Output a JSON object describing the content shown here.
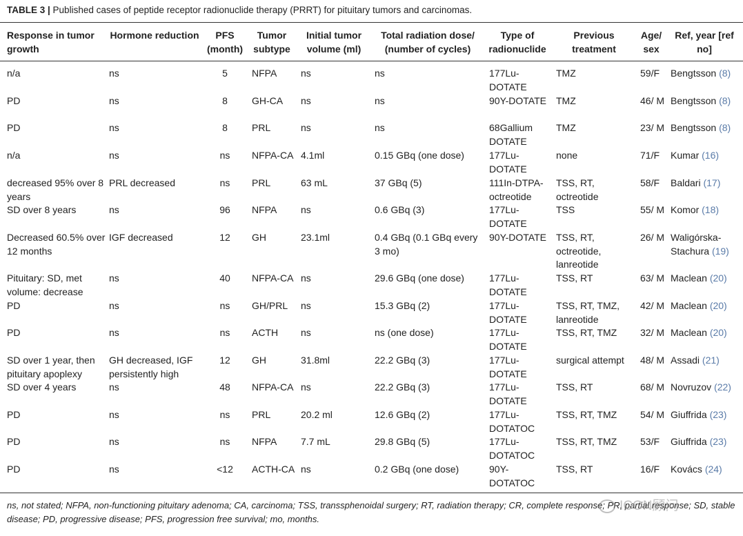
{
  "caption": {
    "label": "TABLE 3 |",
    "text": "Published cases of peptide receptor radionuclide therapy (PRRT) for pituitary tumors and carcinomas."
  },
  "headers": [
    "Response in tumor growth",
    "Hormone reduction",
    "PFS (month)",
    "Tumor subtype",
    "Initial tumor volume (ml)",
    "Total radiation dose/ (number of cycles)",
    "Type of radionuclide",
    "Previous treatment",
    "Age/ sex",
    "Ref, year [ref no]"
  ],
  "rows": [
    {
      "response": "n/a",
      "hormone": "ns",
      "pfs": "5",
      "subtype": "NFPA",
      "volume": "ns",
      "dose": "ns",
      "nuclide": "177Lu-DOTATE",
      "previous": "TMZ",
      "age": "59/F",
      "ref": "Bengtsson",
      "refno": "(8)"
    },
    {
      "response": "PD",
      "hormone": "ns",
      "pfs": "8",
      "subtype": "GH-CA",
      "volume": "ns",
      "dose": "ns",
      "nuclide": "90Y-DOTATE",
      "previous": "TMZ",
      "age": "46/ M",
      "ref": "Bengtsson",
      "refno": "(8)"
    },
    {
      "response": "PD",
      "hormone": "ns",
      "pfs": "8",
      "subtype": "PRL",
      "volume": "ns",
      "dose": "ns",
      "nuclide": "68Gallium DOTATE",
      "previous": "TMZ",
      "age": "23/ M",
      "ref": "Bengtsson",
      "refno": "(8)"
    },
    {
      "response": "n/a",
      "hormone": "ns",
      "pfs": "ns",
      "subtype": "NFPA-CA",
      "volume": "4.1ml",
      "dose": "0.15 GBq (one dose)",
      "nuclide": "177Lu-DOTATE",
      "previous": "none",
      "age": "71/F",
      "ref": "Kumar",
      "refno": "(16)"
    },
    {
      "response": "decreased 95% over 8 years",
      "hormone": "PRL decreased",
      "pfs": "ns",
      "subtype": "PRL",
      "volume": "63 mL",
      "dose": "37 GBq (5)",
      "nuclide": "111In-DTPA-octreotide",
      "previous": "TSS, RT, octreotide",
      "age": "58/F",
      "ref": "Baldari",
      "refno": "(17)"
    },
    {
      "response": "SD over 8 years",
      "hormone": "ns",
      "pfs": "96",
      "subtype": "NFPA",
      "volume": "ns",
      "dose": "0.6 GBq (3)",
      "nuclide": "177Lu-DOTATE",
      "previous": "TSS",
      "age": "55/ M",
      "ref": "Komor",
      "refno": "(18)"
    },
    {
      "response": "Decreased 60.5% over 12 months",
      "hormone": "IGF decreased",
      "pfs": "12",
      "subtype": "GH",
      "volume": "23.1ml",
      "dose": "0.4 GBq (0.1 GBq every 3 mo)",
      "nuclide": "90Y-DOTATE",
      "previous": "TSS, RT, octreotide, lanreotide",
      "age": "26/ M",
      "ref": "Waligórska-Stachura",
      "refno": "(19)"
    },
    {
      "response": "Pituitary: SD, met volume: decrease",
      "hormone": "ns",
      "pfs": "40",
      "subtype": "NFPA-CA",
      "volume": "ns",
      "dose": "29.6 GBq (one dose)",
      "nuclide": "177Lu-DOTATE",
      "previous": "TSS, RT",
      "age": "63/ M",
      "ref": "Maclean",
      "refno": "(20)"
    },
    {
      "response": "PD",
      "hormone": "ns",
      "pfs": "ns",
      "subtype": "GH/PRL",
      "volume": "ns",
      "dose": "15.3 GBq (2)",
      "nuclide": "177Lu-DOTATE",
      "previous": "TSS, RT, TMZ, lanreotide",
      "age": "42/ M",
      "ref": "Maclean",
      "refno": "(20)"
    },
    {
      "response": "PD",
      "hormone": "ns",
      "pfs": "ns",
      "subtype": "ACTH",
      "volume": "ns",
      "dose": "ns (one dose)",
      "nuclide": "177Lu-DOTATE",
      "previous": "TSS, RT, TMZ",
      "age": "32/ M",
      "ref": "Maclean",
      "refno": "(20)"
    },
    {
      "response": "SD over 1 year, then pituitary apoplexy",
      "hormone": "GH decreased, IGF persistently high",
      "pfs": "12",
      "subtype": "GH",
      "volume": "31.8ml",
      "dose": "22.2 GBq (3)",
      "nuclide": "177Lu-DOTATE",
      "previous": "surgical attempt",
      "age": "48/ M",
      "ref": "Assadi",
      "refno": "(21)"
    },
    {
      "response": "SD over 4 years",
      "hormone": "ns",
      "pfs": "48",
      "subtype": "NFPA-CA",
      "volume": "ns",
      "dose": "22.2 GBq (3)",
      "nuclide": "177Lu-DOTATE",
      "previous": "TSS, RT",
      "age": "68/ M",
      "ref": "Novruzov",
      "refno": "(22)"
    },
    {
      "response": "PD",
      "hormone": "ns",
      "pfs": "ns",
      "subtype": "PRL",
      "volume": "20.2 ml",
      "dose": "12.6 GBq (2)",
      "nuclide": "177Lu-DOTATOC",
      "previous": "TSS, RT, TMZ",
      "age": "54/ M",
      "ref": "Giuffrida",
      "refno": "(23)"
    },
    {
      "response": "PD",
      "hormone": "ns",
      "pfs": "ns",
      "subtype": "NFPA",
      "volume": "7.7 mL",
      "dose": "29.8 GBq (5)",
      "nuclide": "177Lu-DOTATOC",
      "previous": "TSS, RT, TMZ",
      "age": "53/F",
      "ref": "Giuffrida",
      "refno": "(23)"
    },
    {
      "response": "PD",
      "hormone": "ns",
      "pfs": "<12",
      "subtype": "ACTH-CA",
      "volume": "ns",
      "dose": "0.2 GBq (one dose)",
      "nuclide": "90Y-DOTATOC",
      "previous": "TSS, RT",
      "age": "16/F",
      "ref": "Kovács",
      "refno": "(24)"
    }
  ],
  "footnote": "ns, not stated; NFPA, non-functioning pituitary adenoma; CA, carcinoma; TSS, transsphenoidal surgery; RT, radiation therapy; CR, complete response; PR, partial response; SD, stable disease; PD, progressive disease; PFS, progression free survival; mo, months.",
  "watermark": "ICON顾问"
}
